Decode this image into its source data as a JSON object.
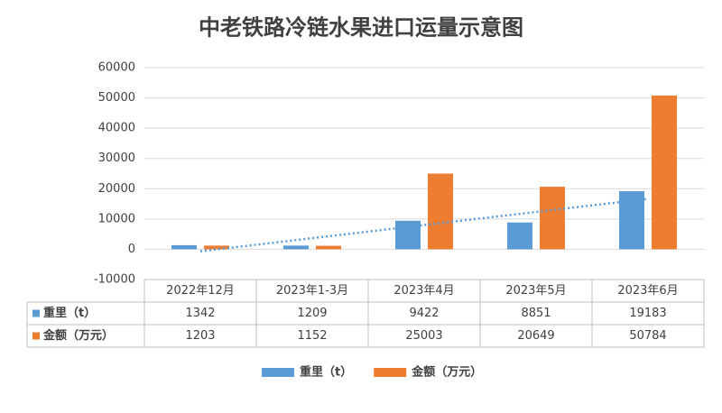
{
  "chart_data": {
    "type": "bar",
    "title": "中老铁路冷链水果进口运量示意图",
    "categories": [
      "2022年12月",
      "2023年1-3月",
      "2023年4月",
      "2023年5月",
      "2023年6月"
    ],
    "series": [
      {
        "name": "重里（t）",
        "color": "#5b9bd5",
        "values": [
          1342,
          1209,
          9422,
          8851,
          19183
        ]
      },
      {
        "name": "金额（万元）",
        "color": "#ed7d31",
        "values": [
          1203,
          1152,
          25003,
          20649,
          50784
        ]
      }
    ],
    "ylim": [
      -10000,
      60000
    ],
    "yticks": [
      -10000,
      0,
      10000,
      20000,
      30000,
      40000,
      50000,
      60000
    ],
    "grid": true,
    "trendline": true,
    "data_table": true,
    "legend": "bottom"
  }
}
